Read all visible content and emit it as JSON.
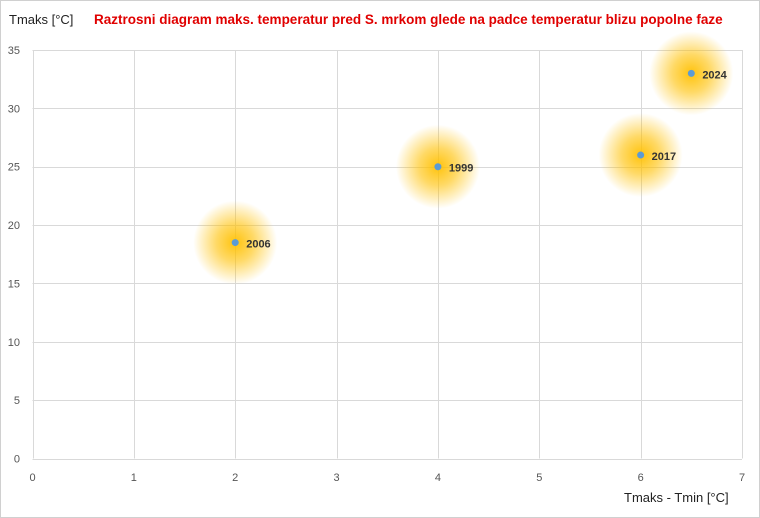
{
  "chart_data": {
    "type": "scatter",
    "title": "Raztrosni diagram maks. temperatur pred S. mrkom glede na padce temperatur blizu popolne faze",
    "xlabel": "Tmaks - Tmin [°C]",
    "ylabel": "Tmaks [°C]",
    "xlim": [
      0,
      7
    ],
    "ylim": [
      0,
      35
    ],
    "xticks": [
      0,
      1,
      2,
      3,
      4,
      5,
      6,
      7
    ],
    "yticks": [
      0,
      5,
      10,
      15,
      20,
      25,
      30,
      35
    ],
    "grid": true,
    "legend": "none",
    "point_color": "#5b9bd5",
    "glow_color": "#ffc000",
    "points": [
      {
        "label": "2006",
        "x": 2.0,
        "y": 18.5
      },
      {
        "label": "1999",
        "x": 4.0,
        "y": 25.0
      },
      {
        "label": "2017",
        "x": 6.0,
        "y": 26.0
      },
      {
        "label": "2024",
        "x": 6.5,
        "y": 33.0
      }
    ]
  }
}
